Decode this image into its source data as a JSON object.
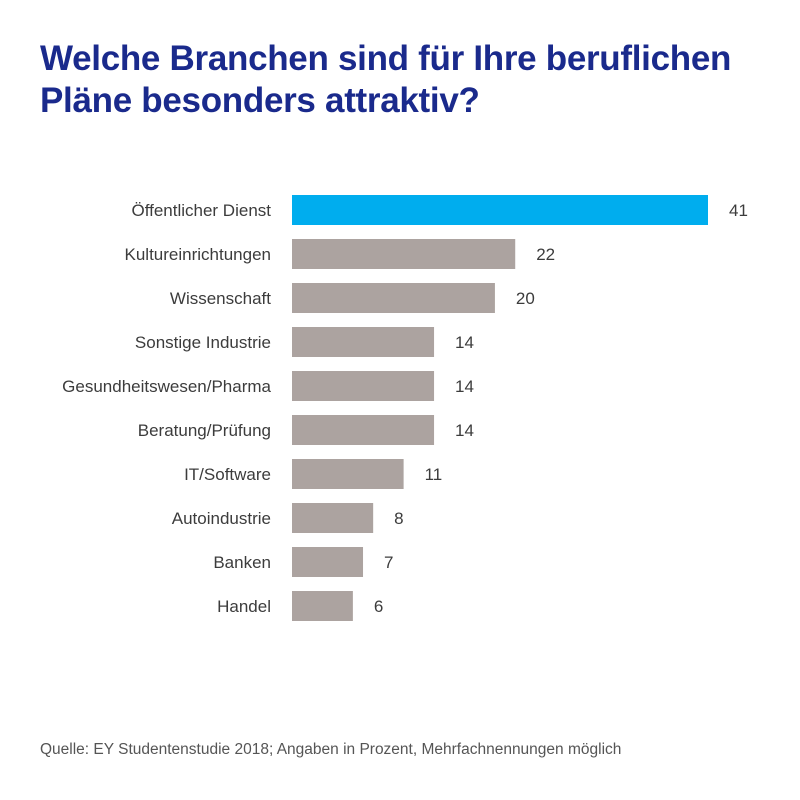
{
  "title_lines": [
    "Welche Branchen sind für Ihre beruflichen",
    "Pläne besonders attraktiv?"
  ],
  "source": "Quelle: EY Studentenstudie 2018; Angaben in Prozent, Mehrfachnennungen möglich",
  "colors": {
    "highlight": "#00adee",
    "bar": "#aca3a0",
    "title": "#1a2a8c",
    "text": "#3c3c3c"
  },
  "chart_data": {
    "type": "bar",
    "orientation": "horizontal",
    "title": "Welche Branchen sind für Ihre beruflichen Pläne besonders attraktiv?",
    "categories": [
      "Öffentlicher Dienst",
      "Kultureinrichtungen",
      "Wissenschaft",
      "Sonstige Industrie",
      "Gesundheitswesen/Pharma",
      "Beratung/Prüfung",
      "IT/Software",
      "Autoindustrie",
      "Banken",
      "Handel"
    ],
    "values": [
      41,
      22,
      20,
      14,
      14,
      14,
      11,
      8,
      7,
      6
    ],
    "highlighted_index": 0,
    "unit": "Prozent",
    "xlim": [
      0,
      41
    ],
    "grid": false,
    "legend": "none",
    "data_labels": true
  }
}
